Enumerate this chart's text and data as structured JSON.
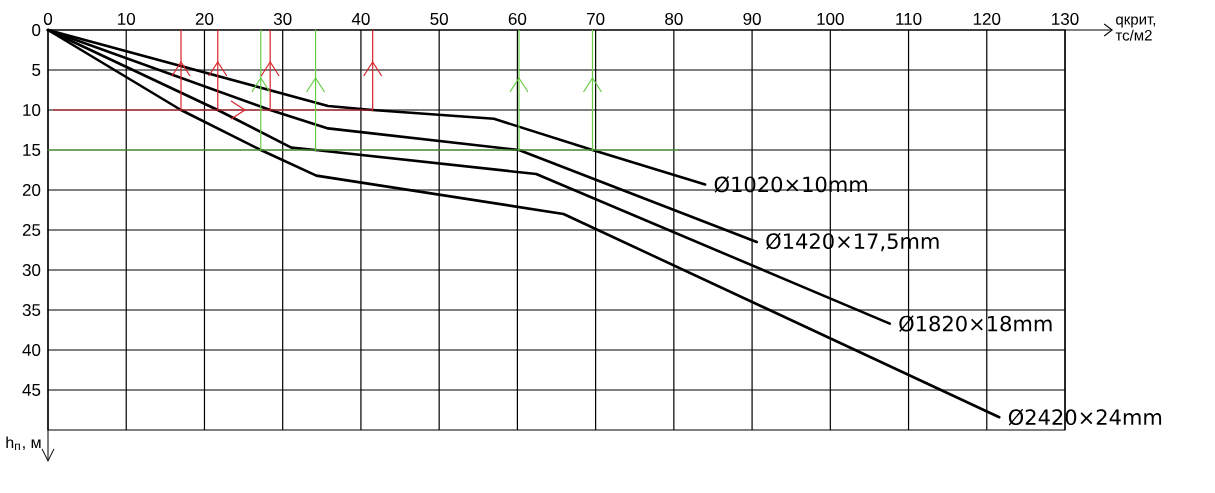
{
  "chart_data": {
    "type": "line",
    "xlabel": "qкрит, тс/м2",
    "ylabel": "h$_{п}$, м",
    "xlim": [
      0,
      130
    ],
    "xticks": [
      0,
      10,
      20,
      30,
      40,
      50,
      60,
      70,
      80,
      90,
      100,
      110,
      120,
      130
    ],
    "ylim": [
      50,
      0
    ],
    "yticks": [
      0,
      5,
      10,
      15,
      20,
      25,
      30,
      35,
      40,
      45
    ],
    "grid": true,
    "series": [
      {
        "name": "Ø1020×10mm",
        "color": "#000000",
        "x": [
          0,
          35.8,
          41.5,
          57,
          69.6,
          84
        ],
        "values": [
          0,
          9.5,
          10,
          11.1,
          15,
          19.3
        ]
      },
      {
        "name": "Ø1420×17,5mm",
        "color": "#000000",
        "x": [
          0,
          28.4,
          35.8,
          60.2,
          90.6
        ],
        "values": [
          0,
          10,
          12.3,
          15,
          26.5
        ]
      },
      {
        "name": "Ø1820×18mm",
        "color": "#000000",
        "x": [
          0,
          21.7,
          31.1,
          34.2,
          62.4,
          107.6
        ],
        "values": [
          0,
          10,
          14.7,
          15,
          18,
          36.7
        ]
      },
      {
        "name": "Ø2420×24mm",
        "color": "#000000",
        "x": [
          0,
          17,
          27.2,
          34.3,
          65.9,
          121.6
        ],
        "values": [
          0,
          10,
          15,
          18.2,
          23,
          48.4
        ]
      },
      {
        "color": "#d8232a",
        "x": [
          0.7,
          41.5
        ],
        "values": [
          10,
          10
        ]
      },
      {
        "color": "#d8232a",
        "x": [
          17,
          17
        ],
        "values": [
          10,
          0
        ]
      },
      {
        "color": "#d8232a",
        "x": [
          21.7,
          21.7
        ],
        "values": [
          10,
          0
        ]
      },
      {
        "color": "#d8232a",
        "x": [
          28.4,
          28.4
        ],
        "values": [
          10,
          0
        ]
      },
      {
        "color": "#d8232a",
        "x": [
          41.5,
          41.5
        ],
        "values": [
          10,
          0
        ]
      },
      {
        "color": "#66cc44",
        "x": [
          0,
          27.2,
          34.2,
          60.2,
          69.6,
          80.5
        ],
        "values": [
          15,
          15,
          15,
          15,
          15,
          15
        ]
      },
      {
        "color": "#66cc44",
        "x": [
          27.2,
          27.2
        ],
        "values": [
          15,
          0
        ]
      },
      {
        "color": "#66cc44",
        "x": [
          34.2,
          34.2
        ],
        "values": [
          15,
          0
        ]
      },
      {
        "color": "#66cc44",
        "x": [
          60.2,
          60.2
        ],
        "values": [
          15,
          0
        ]
      },
      {
        "color": "#66cc44",
        "x": [
          69.6,
          69.6
        ],
        "values": [
          15,
          0
        ]
      }
    ]
  }
}
